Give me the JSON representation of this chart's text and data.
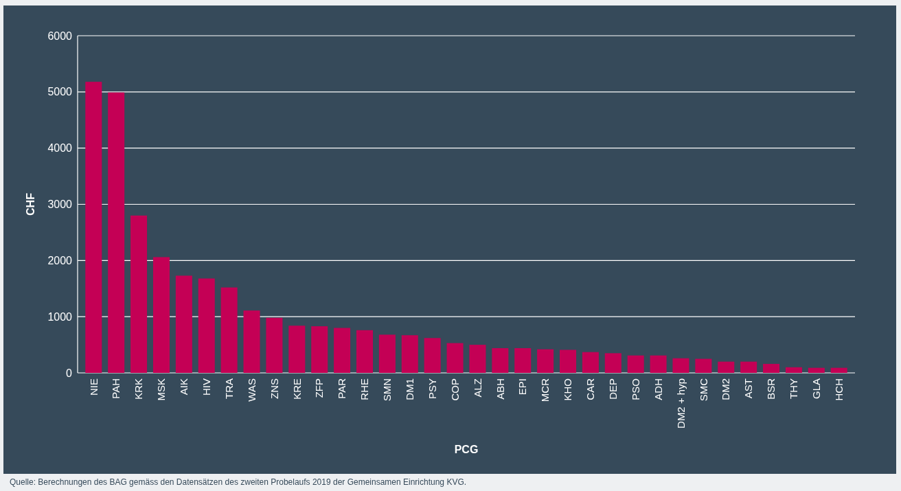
{
  "chart_data": {
    "type": "bar",
    "xlabel": "PCG",
    "ylabel": "CHF",
    "categories": [
      "NIE",
      "PAH",
      "KRK",
      "MSK",
      "AIK",
      "HIV",
      "TRA",
      "WAS",
      "ZNS",
      "KRE",
      "ZFP",
      "PAR",
      "RHE",
      "SMN",
      "DM1",
      "PSY",
      "COP",
      "ALZ",
      "ABH",
      "EPI",
      "MCR",
      "KHO",
      "CAR",
      "DEP",
      "PSO",
      "ADH",
      "DM2 + hyp",
      "SMC",
      "DM2",
      "AST",
      "BSR",
      "THY",
      "GLA",
      "HCH"
    ],
    "values": [
      5180,
      4990,
      2800,
      2060,
      1730,
      1680,
      1520,
      1110,
      980,
      840,
      830,
      800,
      760,
      680,
      670,
      620,
      530,
      500,
      440,
      440,
      420,
      410,
      370,
      350,
      310,
      310,
      260,
      250,
      200,
      200,
      160,
      100,
      90,
      90
    ],
    "color": "#c40055",
    "ylim": [
      0,
      6000
    ],
    "yticks": [
      0,
      1000,
      2000,
      3000,
      4000,
      5000,
      6000
    ],
    "grid": "y",
    "annotations": [
      "Quelle: Berechnungen des BAG gemäss den Datensätzen des zweiten Probelaufs 2019 der Gemeinsamen Einrichtung KVG."
    ]
  }
}
